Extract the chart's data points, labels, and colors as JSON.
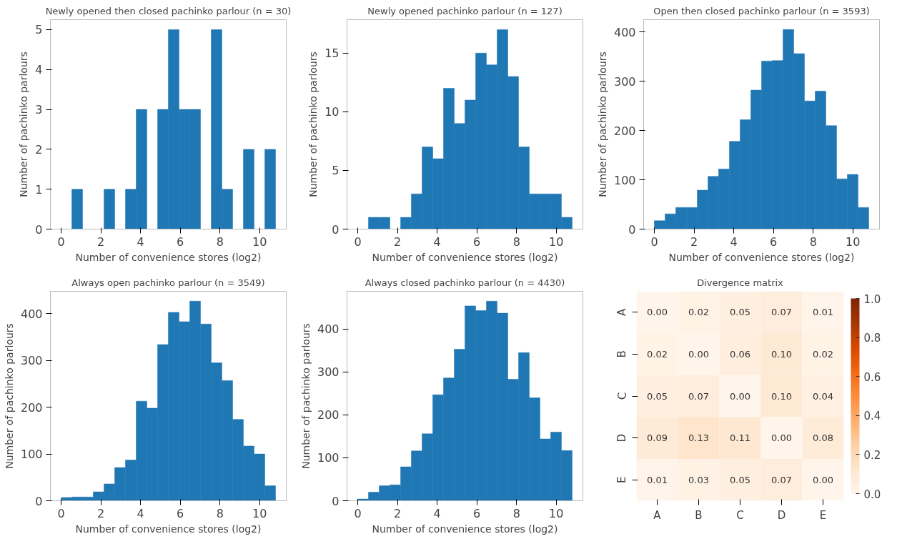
{
  "chart_data": [
    {
      "type": "histogram",
      "title": "Newly opened then closed pachinko parlour (n = 30)",
      "xlabel": "Number of convenience stores (log2)",
      "ylabel": "Number of pachinko parlours",
      "color": "#1f77b4",
      "bins": [
        0,
        0.54,
        1.08,
        1.62,
        2.16,
        2.7,
        3.24,
        3.78,
        4.32,
        4.86,
        5.4,
        5.94,
        6.48,
        7.02,
        7.56,
        8.1,
        8.64,
        9.18,
        9.72,
        10.26,
        10.8
      ],
      "values": [
        0,
        1,
        0,
        0,
        1,
        0,
        1,
        3,
        0,
        3,
        5,
        3,
        3,
        0,
        5,
        1,
        0,
        2,
        0,
        2
      ],
      "xlim": [
        -0.54,
        11.34
      ],
      "ylim": [
        0,
        5.25
      ],
      "xticks": [
        0,
        2,
        4,
        6,
        8,
        10
      ],
      "yticks": [
        0,
        1,
        2,
        3,
        4,
        5
      ],
      "grid": false
    },
    {
      "type": "histogram",
      "title": "Newly opened pachinko parlour (n = 127)",
      "xlabel": "Number of convenience stores (log2)",
      "ylabel": "Number of pachinko parlours",
      "color": "#1f77b4",
      "bins": [
        0,
        0.54,
        1.08,
        1.62,
        2.16,
        2.7,
        3.24,
        3.78,
        4.32,
        4.86,
        5.4,
        5.94,
        6.48,
        7.02,
        7.56,
        8.1,
        8.64,
        9.18,
        9.72,
        10.26,
        10.8
      ],
      "values": [
        0,
        1,
        1,
        0,
        1,
        3,
        7,
        6,
        12,
        9,
        11,
        15,
        14,
        17,
        13,
        7,
        3,
        3,
        3,
        1
      ],
      "xlim": [
        -0.54,
        11.34
      ],
      "ylim": [
        0,
        17.85
      ],
      "xticks": [
        0,
        2,
        4,
        6,
        8,
        10
      ],
      "yticks": [
        0,
        5,
        10,
        15
      ],
      "grid": false
    },
    {
      "type": "histogram",
      "title": "Open then closed pachinko parlour (n = 3593)",
      "xlabel": "Number of convenience stores (log2)",
      "ylabel": "Number of pachinko parlours",
      "color": "#1f77b4",
      "bins": [
        0,
        0.54,
        1.08,
        1.62,
        2.16,
        2.7,
        3.24,
        3.78,
        4.32,
        4.86,
        5.4,
        5.94,
        6.48,
        7.02,
        7.56,
        8.1,
        8.64,
        9.18,
        9.72,
        10.26,
        10.8
      ],
      "values": [
        17,
        31,
        44,
        44,
        79,
        107,
        122,
        178,
        222,
        282,
        341,
        342,
        405,
        356,
        260,
        280,
        210,
        102,
        111,
        44
      ],
      "xlim": [
        -0.54,
        11.34
      ],
      "ylim": [
        0,
        425
      ],
      "xticks": [
        0,
        2,
        4,
        6,
        8,
        10
      ],
      "yticks": [
        0,
        100,
        200,
        300,
        400
      ],
      "grid": false
    },
    {
      "type": "histogram",
      "title": "Always open pachinko parlour (n = 3549)",
      "xlabel": "Number of convenience stores (log2)",
      "ylabel": "Number of pachinko parlours",
      "color": "#1f77b4",
      "bins": [
        0,
        0.54,
        1.08,
        1.62,
        2.16,
        2.7,
        3.24,
        3.78,
        4.32,
        4.86,
        5.4,
        5.94,
        6.48,
        7.02,
        7.56,
        8.1,
        8.64,
        9.18,
        9.72,
        10.26,
        10.8
      ],
      "values": [
        7,
        8,
        8,
        19,
        36,
        71,
        87,
        213,
        198,
        334,
        403,
        383,
        427,
        378,
        295,
        257,
        174,
        117,
        100,
        32
      ],
      "xlim": [
        -0.54,
        11.34
      ],
      "ylim": [
        0,
        448
      ],
      "xticks": [
        0,
        2,
        4,
        6,
        8,
        10
      ],
      "yticks": [
        0,
        100,
        200,
        300,
        400
      ],
      "grid": false
    },
    {
      "type": "histogram",
      "title": "Always closed pachinko parlour (n = 4430)",
      "xlabel": "Number of convenience stores (log2)",
      "ylabel": "Number of pachinko parlours",
      "color": "#1f77b4",
      "bins": [
        0,
        0.54,
        1.08,
        1.62,
        2.16,
        2.7,
        3.24,
        3.78,
        4.32,
        4.86,
        5.4,
        5.94,
        6.48,
        7.02,
        7.56,
        8.1,
        8.64,
        9.18,
        9.72,
        10.26,
        10.8
      ],
      "values": [
        4,
        20,
        35,
        37,
        79,
        116,
        156,
        247,
        286,
        353,
        454,
        443,
        465,
        437,
        283,
        345,
        240,
        144,
        160,
        117
      ],
      "xlim": [
        -0.54,
        11.34
      ],
      "ylim": [
        0,
        488
      ],
      "xticks": [
        0,
        2,
        4,
        6,
        8,
        10
      ],
      "yticks": [
        0,
        100,
        200,
        300,
        400
      ],
      "grid": false
    },
    {
      "type": "heatmap",
      "title": "Divergence matrix",
      "categories": [
        "A",
        "B",
        "C",
        "D",
        "E"
      ],
      "y_categories": [
        "A",
        "B",
        "C",
        "D",
        "E"
      ],
      "cells": [
        [
          0.0,
          0.02,
          0.05,
          0.07,
          0.01
        ],
        [
          0.02,
          0.0,
          0.06,
          0.1,
          0.02
        ],
        [
          0.05,
          0.07,
          0.0,
          0.1,
          0.04
        ],
        [
          0.09,
          0.13,
          0.11,
          0.0,
          0.08
        ],
        [
          0.01,
          0.03,
          0.05,
          0.07,
          0.0
        ]
      ],
      "cell_labels": [
        [
          "0.00",
          "0.02",
          "0.05",
          "0.07",
          "0.01"
        ],
        [
          "0.02",
          "0.00",
          "0.06",
          "0.10",
          "0.02"
        ],
        [
          "0.05",
          "0.07",
          "0.00",
          "0.10",
          "0.04"
        ],
        [
          "0.09",
          "0.13",
          "0.11",
          "0.00",
          "0.08"
        ],
        [
          "0.01",
          "0.03",
          "0.05",
          "0.07",
          "0.00"
        ]
      ],
      "clim": [
        0,
        1
      ],
      "cticks": [
        {
          "value": 0,
          "label": "0.0"
        },
        0.2,
        0.4,
        0.6,
        0.8,
        {
          "value": 1,
          "label": "1.0"
        }
      ],
      "data_labels": true
    }
  ]
}
